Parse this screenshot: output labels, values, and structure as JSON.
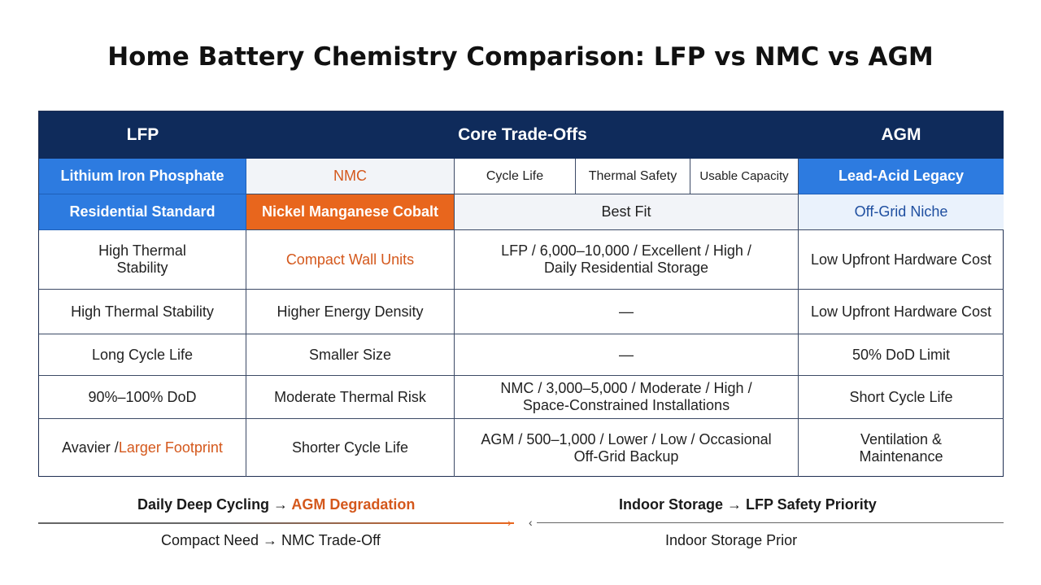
{
  "title": "Home Battery Chemistry Comparison: LFP vs NMC vs AGM",
  "colors": {
    "navy": "#0f2b5b",
    "blue": "#2d7be0",
    "orange": "#e8661d",
    "accent_text": "#d4581c"
  },
  "header": {
    "lfp": "LFP",
    "core": "Core Trade-Offs",
    "agm": "AGM"
  },
  "row1": {
    "lfp": "Lithium Iron Phosphate",
    "nmc": "NMC",
    "cycle_life": "Cycle Life",
    "thermal_safety": "Thermal Safety",
    "usable_capacity": "Usable Capacity",
    "agm": "Lead-Acid Legacy"
  },
  "row2": {
    "lfp": "Residential Standard",
    "nmc": "Nickel Manganese Cobalt",
    "best_fit": "Best Fit",
    "agm": "Off-Grid Niche"
  },
  "rows": [
    {
      "lfp": "High Thermal Stability",
      "nmc": "Compact Wall Units",
      "core": "LFP / 6,000–10,000 / Excellent / High / Daily Residential Storage",
      "agm": "Low Upfront Hardware Cost"
    },
    {
      "lfp": "High Thermal Stability",
      "nmc": "Higher Energy Density",
      "core": "—",
      "agm": "Low Upfront Hardware Cost"
    },
    {
      "lfp": "Long Cycle Life",
      "nmc": "Smaller Size",
      "core": "—",
      "agm": "50% DoD Limit"
    },
    {
      "lfp": "90%–100% DoD",
      "nmc": "Moderate Thermal Risk",
      "core": "NMC / 3,000–5,000 / Moderate / High / Space-Constrained Installations",
      "agm": "Short Cycle Life"
    },
    {
      "lfp_a": "Avavier / ",
      "lfp_b": "Larger Footprint",
      "nmc": "Shorter Cycle Life",
      "core": "AGM / 500–1,000 / Lower / Low / Occasional Off-Grid Backup",
      "agm": "Ventilation & Maintenance"
    }
  ],
  "flow": {
    "top_left_a": "Daily Deep Cycling → ",
    "top_left_b": "AGM Degradation",
    "top_right": "Indoor Storage → LFP Safety Priority",
    "bottom_left": "Compact Need → NMC Trade-Off",
    "bottom_right": "Indoor Storage Prior"
  }
}
